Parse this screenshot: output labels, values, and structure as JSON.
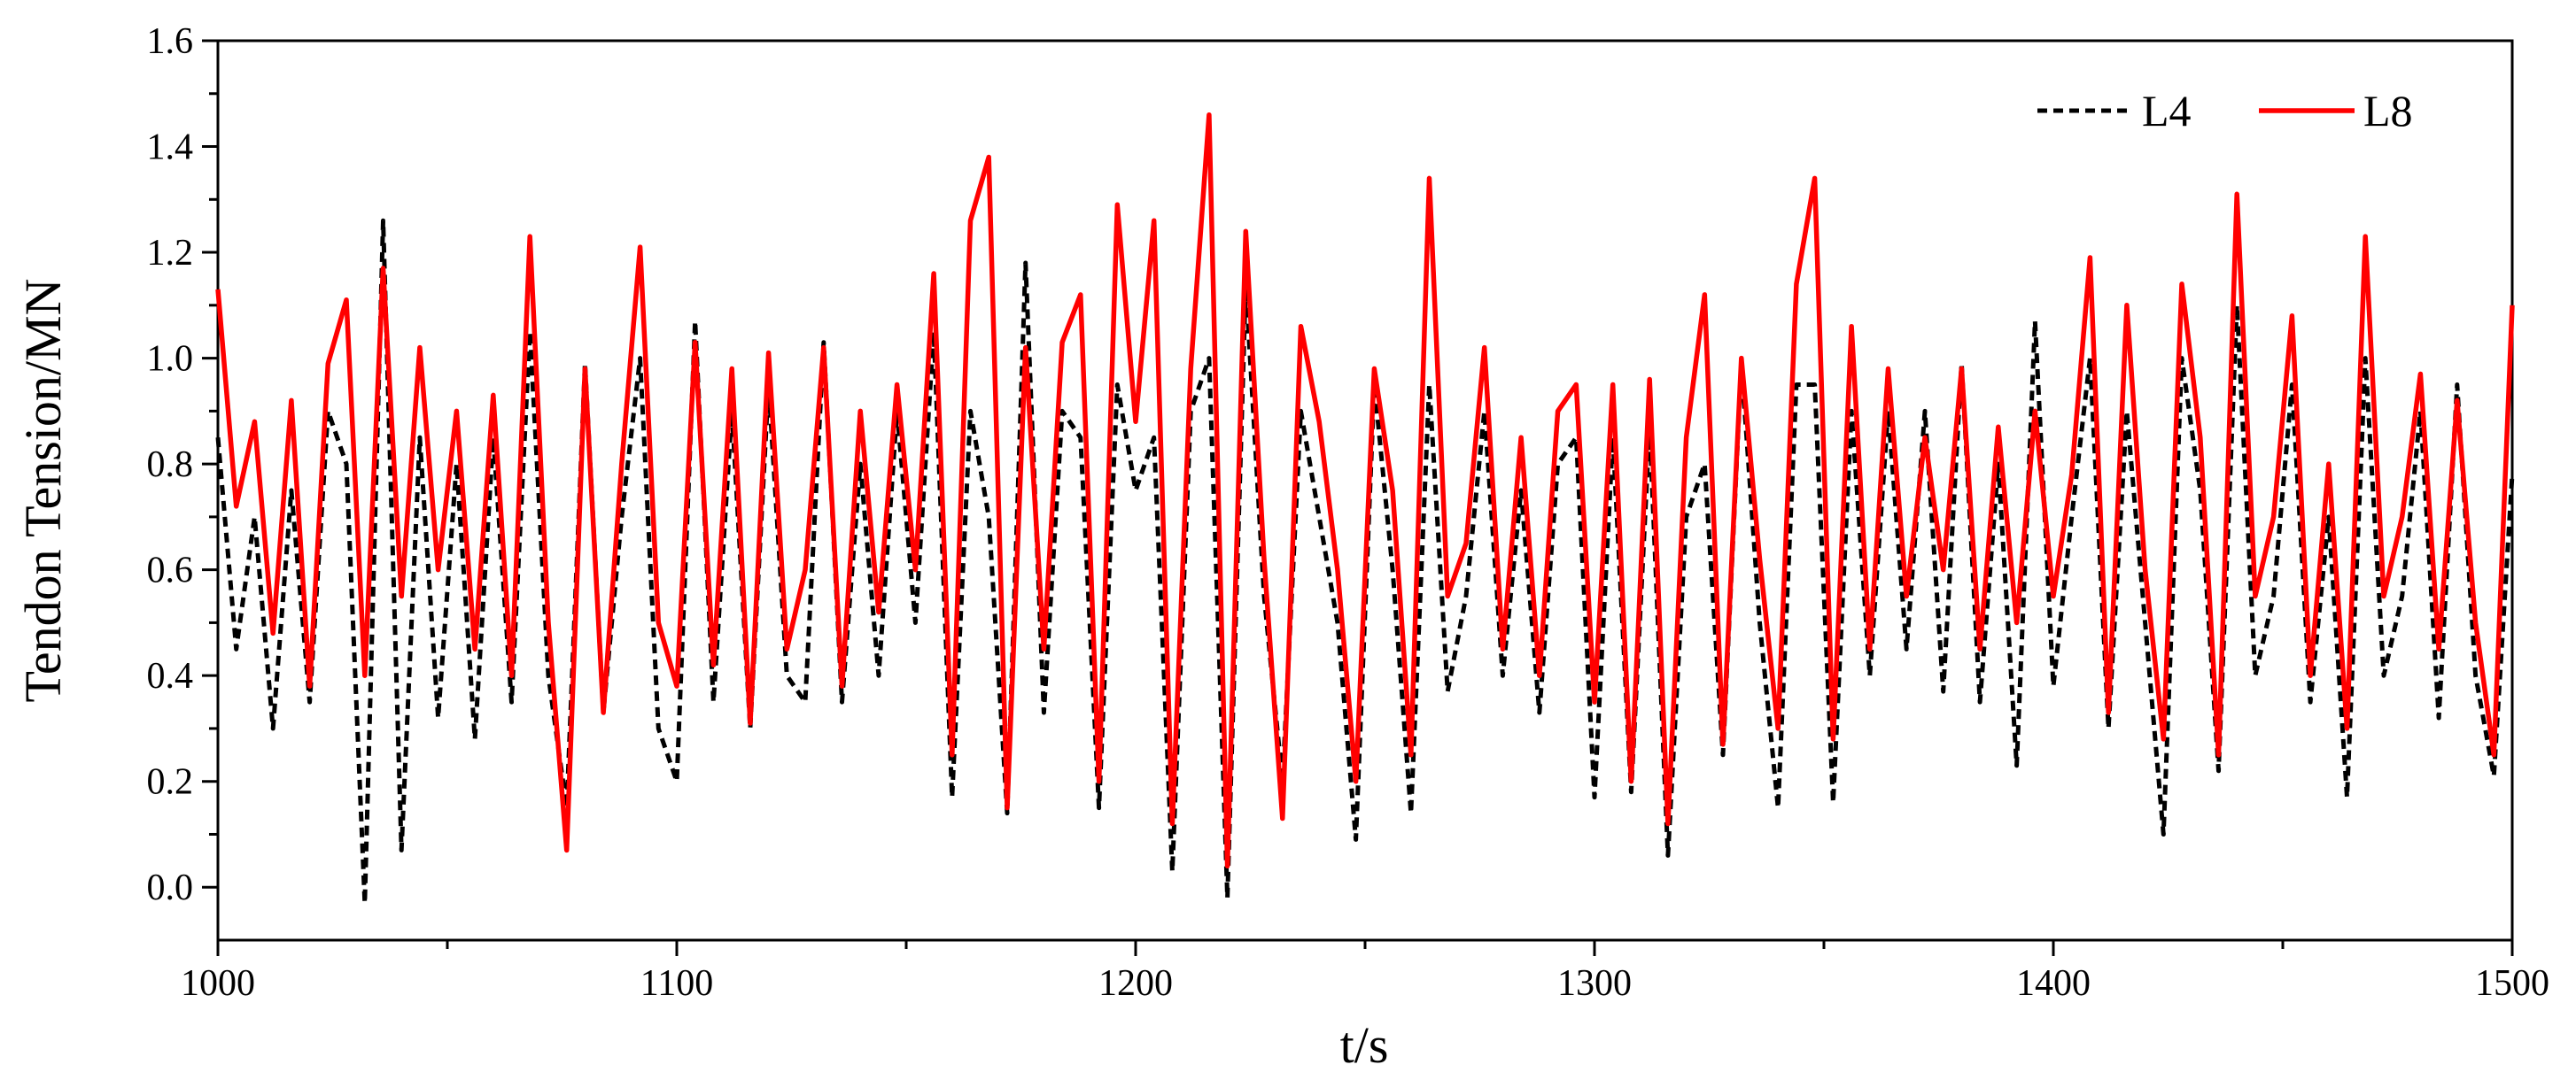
{
  "chart_data": {
    "type": "line",
    "xlabel": "t/s",
    "ylabel": "Tendon Tension/MN",
    "x": [
      1000,
      1004,
      1008,
      1012,
      1016,
      1020,
      1024,
      1028,
      1032,
      1036,
      1040,
      1044,
      1048,
      1052,
      1056,
      1060,
      1064,
      1068,
      1072,
      1076,
      1080,
      1084,
      1088,
      1092,
      1096,
      1100,
      1104,
      1108,
      1112,
      1116,
      1120,
      1124,
      1128,
      1132,
      1136,
      1140,
      1144,
      1148,
      1152,
      1156,
      1160,
      1164,
      1168,
      1172,
      1176,
      1180,
      1184,
      1188,
      1192,
      1196,
      1200,
      1204,
      1208,
      1212,
      1216,
      1220,
      1224,
      1228,
      1232,
      1236,
      1240,
      1244,
      1248,
      1252,
      1256,
      1260,
      1264,
      1268,
      1272,
      1276,
      1280,
      1284,
      1288,
      1292,
      1296,
      1300,
      1304,
      1308,
      1312,
      1316,
      1320,
      1324,
      1328,
      1332,
      1336,
      1340,
      1344,
      1348,
      1352,
      1356,
      1360,
      1364,
      1368,
      1372,
      1376,
      1380,
      1384,
      1388,
      1392,
      1396,
      1400,
      1404,
      1408,
      1412,
      1416,
      1420,
      1424,
      1428,
      1432,
      1436,
      1440,
      1444,
      1448,
      1452,
      1456,
      1460,
      1464,
      1468,
      1472,
      1476,
      1480,
      1484,
      1488,
      1492,
      1496,
      1500
    ],
    "series": [
      {
        "name": "L4",
        "color": "#000000",
        "dashed": true,
        "values": [
          0.85,
          0.45,
          0.7,
          0.3,
          0.75,
          0.35,
          0.9,
          0.8,
          -0.03,
          1.26,
          0.07,
          0.85,
          0.32,
          0.8,
          0.28,
          0.85,
          0.35,
          1.05,
          0.4,
          0.15,
          0.99,
          0.33,
          0.7,
          1.0,
          0.3,
          0.2,
          1.07,
          0.35,
          0.9,
          0.3,
          0.95,
          0.4,
          0.35,
          1.03,
          0.35,
          0.8,
          0.4,
          0.9,
          0.5,
          1.05,
          0.17,
          0.9,
          0.7,
          0.14,
          1.18,
          0.33,
          0.9,
          0.85,
          0.15,
          0.95,
          0.75,
          0.85,
          0.03,
          0.9,
          1.0,
          -0.02,
          1.14,
          0.55,
          0.2,
          0.9,
          0.7,
          0.5,
          0.09,
          0.95,
          0.6,
          0.14,
          0.95,
          0.37,
          0.55,
          0.9,
          0.4,
          0.75,
          0.33,
          0.8,
          0.85,
          0.17,
          0.85,
          0.18,
          0.87,
          0.06,
          0.7,
          0.8,
          0.25,
          0.99,
          0.5,
          0.15,
          0.95,
          0.95,
          0.16,
          0.9,
          0.4,
          0.9,
          0.45,
          0.9,
          0.37,
          0.99,
          0.35,
          0.8,
          0.23,
          1.07,
          0.38,
          0.7,
          1.0,
          0.3,
          0.9,
          0.5,
          0.1,
          1.0,
          0.75,
          0.22,
          1.1,
          0.4,
          0.55,
          0.95,
          0.35,
          0.7,
          0.17,
          1.0,
          0.4,
          0.55,
          0.9,
          0.32,
          0.95,
          0.4,
          0.21,
          0.78
        ]
      },
      {
        "name": "L8",
        "color": "#ff0000",
        "dashed": false,
        "values": [
          1.13,
          0.72,
          0.88,
          0.48,
          0.92,
          0.38,
          0.99,
          1.11,
          0.4,
          1.17,
          0.55,
          1.02,
          0.6,
          0.9,
          0.45,
          0.93,
          0.4,
          1.23,
          0.5,
          0.07,
          0.98,
          0.33,
          0.8,
          1.21,
          0.5,
          0.38,
          1.03,
          0.42,
          0.98,
          0.31,
          1.01,
          0.45,
          0.6,
          1.02,
          0.38,
          0.9,
          0.52,
          0.95,
          0.6,
          1.16,
          0.25,
          1.26,
          1.38,
          0.15,
          1.02,
          0.45,
          1.03,
          1.12,
          0.2,
          1.29,
          0.88,
          1.26,
          0.12,
          0.98,
          1.46,
          0.04,
          1.24,
          0.62,
          0.13,
          1.06,
          0.88,
          0.6,
          0.2,
          0.98,
          0.75,
          0.25,
          1.34,
          0.55,
          0.65,
          1.02,
          0.45,
          0.85,
          0.4,
          0.9,
          0.95,
          0.35,
          0.95,
          0.2,
          0.96,
          0.12,
          0.85,
          1.12,
          0.27,
          1.0,
          0.62,
          0.3,
          1.14,
          1.34,
          0.28,
          1.06,
          0.45,
          0.98,
          0.55,
          0.85,
          0.6,
          0.98,
          0.45,
          0.87,
          0.5,
          0.9,
          0.55,
          0.78,
          1.19,
          0.33,
          1.1,
          0.6,
          0.28,
          1.14,
          0.85,
          0.25,
          1.31,
          0.55,
          0.7,
          1.08,
          0.4,
          0.8,
          0.3,
          1.23,
          0.55,
          0.7,
          0.97,
          0.45,
          0.92,
          0.5,
          0.25,
          1.1
        ]
      }
    ],
    "xlim": [
      1000,
      1500
    ],
    "xticks": [
      1000,
      1100,
      1200,
      1300,
      1400,
      1500
    ],
    "ylim": [
      -0.1,
      1.6
    ],
    "yticks": [
      {
        "value": 0,
        "label": "0.0"
      },
      {
        "value": 0.2,
        "label": "0.2"
      },
      {
        "value": 0.4,
        "label": "0.4"
      },
      {
        "value": 0.6,
        "label": "0.6"
      },
      {
        "value": 0.8,
        "label": "0.8"
      },
      {
        "value": 1.0,
        "label": "1.0"
      },
      {
        "value": 1.2,
        "label": "1.2"
      },
      {
        "value": 1.4,
        "label": "1.4"
      },
      {
        "value": 1.6,
        "label": "1.6"
      }
    ],
    "grid": false,
    "legend": "upper right"
  }
}
